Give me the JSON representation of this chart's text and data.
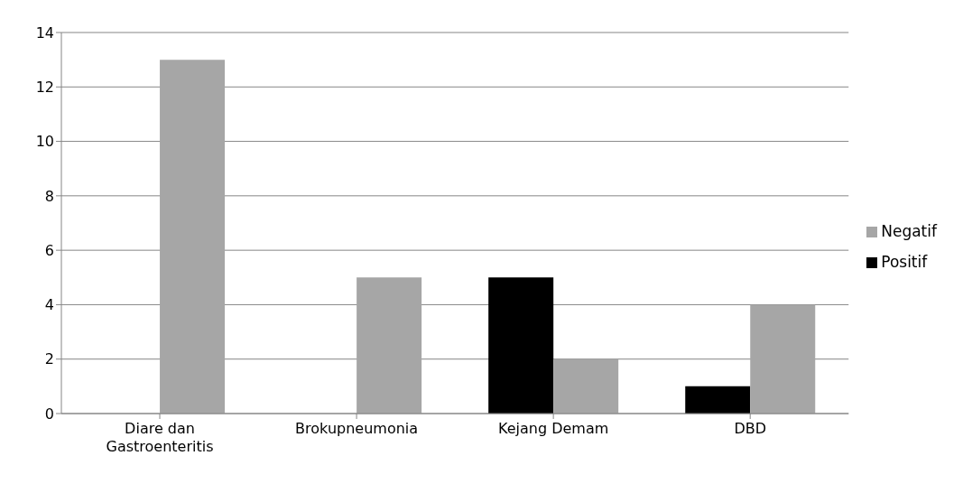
{
  "chart_data": {
    "type": "bar",
    "categories": [
      "Diare dan Gastroenteritis",
      "Brokupneumonia",
      "Kejang Demam",
      "DBD"
    ],
    "series": [
      {
        "name": "Positif",
        "color": "#000000",
        "values": [
          0,
          0,
          5,
          1
        ]
      },
      {
        "name": "Negatif",
        "color": "#a6a6a6",
        "values": [
          13,
          5,
          2,
          4
        ]
      }
    ],
    "ylim": [
      0,
      14
    ],
    "yticks": [
      0,
      2,
      4,
      6,
      8,
      10,
      12,
      14
    ],
    "grid": "y",
    "legend": "right"
  }
}
